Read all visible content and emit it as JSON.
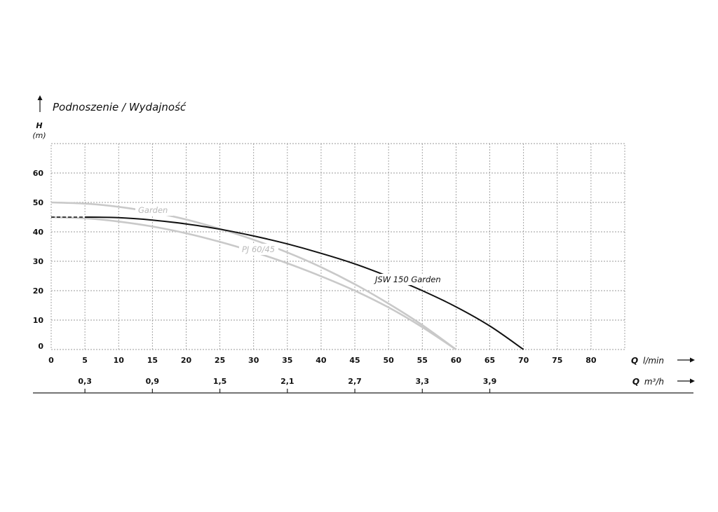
{
  "chart_data": {
    "type": "line",
    "title": "Podnoszenie / Wydajność",
    "ylabel": "H",
    "yunit": "(m)",
    "xlabel_q": "Q",
    "xunit_lmin": "l/min",
    "xunit_m3h": "m³/h",
    "xlim": [
      0,
      85
    ],
    "ylim": [
      0,
      70
    ],
    "grid": true,
    "x_ticks": [
      "0",
      "5",
      "10",
      "15",
      "20",
      "25",
      "30",
      "35",
      "40",
      "45",
      "50",
      "55",
      "60",
      "65",
      "70",
      "75",
      "80"
    ],
    "x_ticks_values": [
      0,
      5,
      10,
      15,
      20,
      25,
      30,
      35,
      40,
      45,
      50,
      55,
      60,
      65,
      70,
      75,
      80
    ],
    "y_ticks": [
      "0",
      "10",
      "20",
      "30",
      "40",
      "50",
      "60"
    ],
    "y_ticks_values": [
      0,
      10,
      20,
      30,
      40,
      50,
      60
    ],
    "secondary_x_ticks": [
      "0,3",
      "0,9",
      "1,5",
      "2,1",
      "2,7",
      "3,3",
      "3,9"
    ],
    "secondary_x_ticks_values": [
      5,
      15,
      25,
      35,
      45,
      55,
      65
    ],
    "series": [
      {
        "name": "JSW 150 Garden",
        "color": "#111111",
        "x": [
          0,
          5,
          10,
          15,
          20,
          25,
          30,
          35,
          40,
          45,
          50,
          55,
          60,
          65,
          70
        ],
        "y": [
          45,
          45,
          44.8,
          44,
          42.7,
          40.9,
          38.6,
          35.9,
          32.7,
          29.1,
          24.8,
          20,
          14.5,
          8,
          0
        ]
      },
      {
        "name": "Garden",
        "color": "#c9c9c9",
        "x": [
          0,
          5,
          10,
          15,
          20,
          25,
          30,
          35,
          40,
          45,
          50,
          55,
          60
        ],
        "y": [
          50,
          49.6,
          48.5,
          46.7,
          44.2,
          41,
          37.3,
          33,
          28,
          22.2,
          15.6,
          8.3,
          0
        ]
      },
      {
        "name": "PJ 60/45",
        "color": "#c9c9c9",
        "x": [
          0,
          5,
          10,
          15,
          20,
          25,
          30,
          35,
          40,
          45,
          50,
          55,
          60
        ],
        "y": [
          45,
          44.6,
          43.5,
          41.8,
          39.5,
          36.6,
          33.2,
          29.3,
          24.9,
          20,
          14.3,
          7.6,
          0
        ]
      }
    ]
  }
}
